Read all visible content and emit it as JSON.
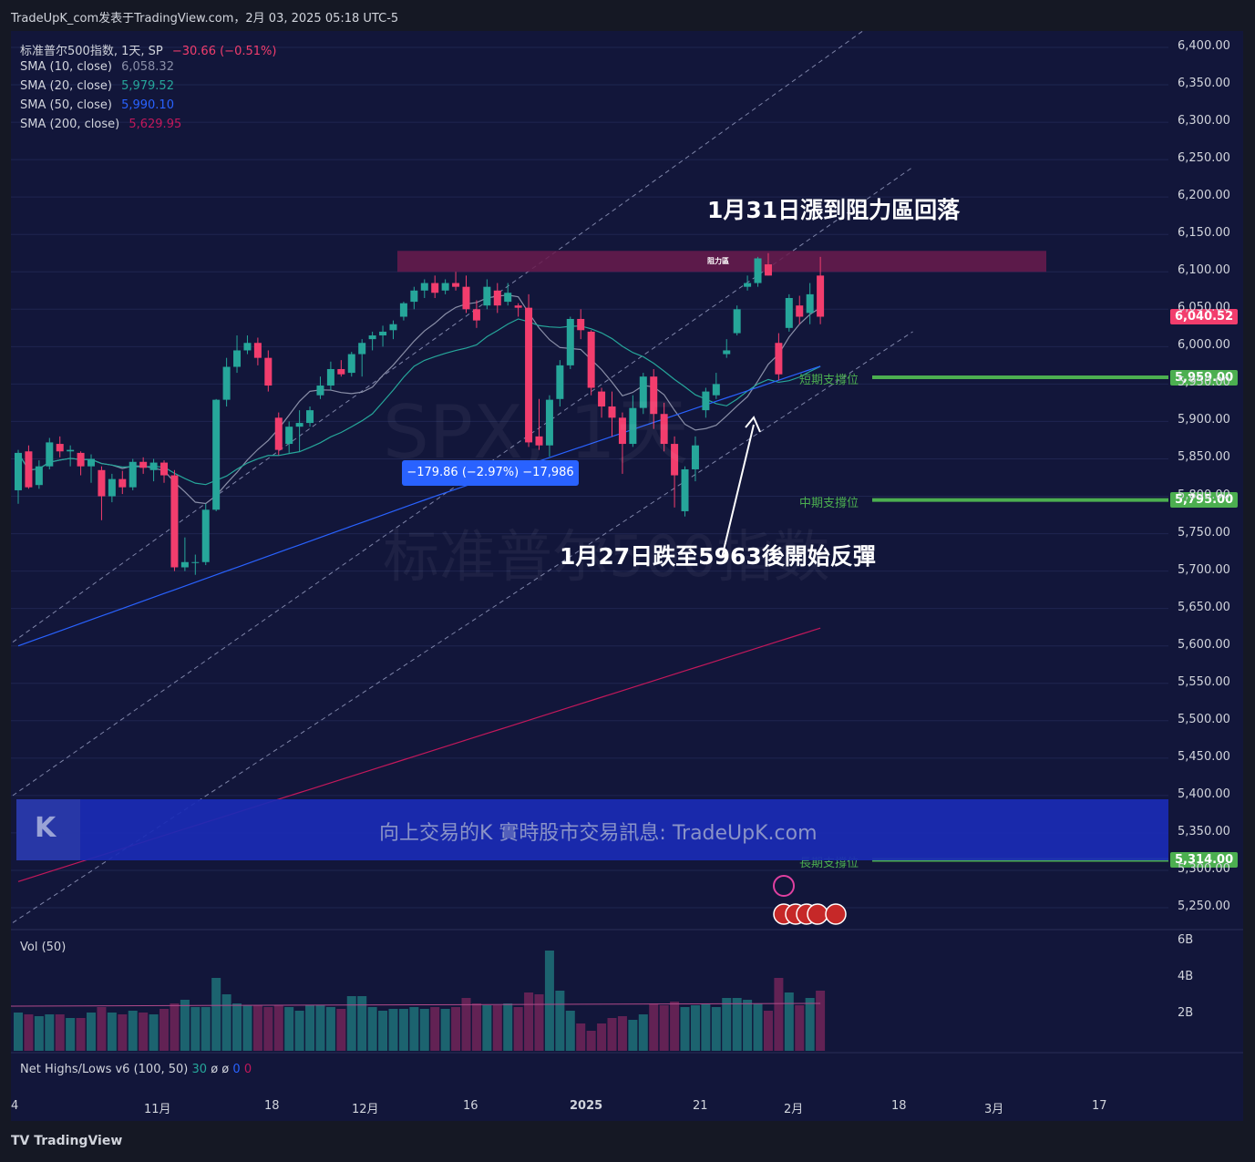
{
  "header": {
    "publish_line": "TradeUpK_com发表于TradingView.com，2月 03, 2025 05:18 UTC-5"
  },
  "legend": {
    "symbol": "标准普尔500指数, 1天, SP",
    "change": "−30.66 (−0.51%)",
    "sma10_label": "SMA (10, close)",
    "sma10_value": "6,058.32",
    "sma20_label": "SMA (20, close)",
    "sma20_value": "5,979.52",
    "sma50_label": "SMA (50, close)",
    "sma50_value": "5,990.10",
    "sma200_label": "SMA (200, close)",
    "sma200_value": "5,629.95"
  },
  "colors": {
    "up": "#26a69a",
    "down": "#f23d6d",
    "sma10": "#8a8fa8",
    "sma20": "#26a69a",
    "sma50": "#2962ff",
    "sma200": "#c2185b",
    "support": "#4caf50",
    "resistance": "#6a1b4d",
    "background": "#12163a"
  },
  "annotations": {
    "top_note": "1月31日漲到阻力區回落",
    "bottom_note": "1月27日跌至5963後開始反彈",
    "resistance_label": "阻力區",
    "short_support": "短期支撐位",
    "mid_support": "中期支撐位",
    "long_support": "長期支撐位",
    "measure": "−179.86 (−2.97%) −17,986"
  },
  "price_tags": {
    "last": "6,040.52",
    "short": "5,959.00",
    "mid": "5,795.00",
    "long": "5,314.00"
  },
  "watermark": {
    "symbol": "SPX, 1天",
    "name": "标准普尔500指数"
  },
  "banner": {
    "logo": "K",
    "text": "向上交易的K 實時股市交易訊息: TradeUpK.com"
  },
  "volume_panel": {
    "label": "Vol (50)",
    "ticks": [
      "6B",
      "4B",
      "2B"
    ]
  },
  "net_highs_lows": {
    "label": "Net Highs/Lows v6 (100, 50)",
    "v1": "30",
    "v2": "ø",
    "v3": "ø",
    "v4": "0",
    "v5": "0"
  },
  "footer": {
    "brand": "TradingView"
  },
  "chart_data": {
    "type": "candlestick",
    "symbol": "SPX",
    "y_axis_ticks": [
      "6,400.00",
      "6,350.00",
      "6,300.00",
      "6,250.00",
      "6,200.00",
      "6,150.00",
      "6,100.00",
      "6,050.00",
      "6,000.00",
      "5,950.00",
      "5,900.00",
      "5,850.00",
      "5,800.00",
      "5,750.00",
      "5,700.00",
      "5,650.00",
      "5,600.00",
      "5,550.00",
      "5,500.00",
      "5,450.00",
      "5,400.00",
      "5,350.00",
      "5,300.00",
      "5,250.00"
    ],
    "ylim": [
      5225,
      6425
    ],
    "x_axis_labels": [
      {
        "label": "4",
        "i": -1
      },
      {
        "label": "11月",
        "i": 5
      },
      {
        "label": "18",
        "i": 9
      },
      {
        "label": "12月",
        "i": 13
      },
      {
        "label": "16",
        "i": 17
      },
      {
        "label": "2025",
        "i": 21.5
      },
      {
        "label": "21",
        "i": 26
      },
      {
        "label": "2月",
        "i": 30
      },
      {
        "label": "18",
        "i": 34
      },
      {
        "label": "3月",
        "i": 38
      },
      {
        "label": "17",
        "i": 42
      }
    ],
    "candles": [
      {
        "o": 5808,
        "h": 5862,
        "l": 5790,
        "c": 5858,
        "v": 2.1
      },
      {
        "o": 5860,
        "h": 5868,
        "l": 5810,
        "c": 5812,
        "v": 2.0
      },
      {
        "o": 5815,
        "h": 5848,
        "l": 5810,
        "c": 5840,
        "v": 1.9
      },
      {
        "o": 5840,
        "h": 5878,
        "l": 5836,
        "c": 5872,
        "v": 2.0
      },
      {
        "o": 5870,
        "h": 5880,
        "l": 5852,
        "c": 5860,
        "v": 2.0
      },
      {
        "o": 5860,
        "h": 5868,
        "l": 5840,
        "c": 5862,
        "v": 1.8
      },
      {
        "o": 5858,
        "h": 5860,
        "l": 5828,
        "c": 5840,
        "v": 1.8
      },
      {
        "o": 5840,
        "h": 5856,
        "l": 5818,
        "c": 5850,
        "v": 2.1
      },
      {
        "o": 5835,
        "h": 5840,
        "l": 5768,
        "c": 5800,
        "v": 2.4
      },
      {
        "o": 5800,
        "h": 5830,
        "l": 5792,
        "c": 5823,
        "v": 2.1
      },
      {
        "o": 5823,
        "h": 5834,
        "l": 5803,
        "c": 5812,
        "v": 2.0
      },
      {
        "o": 5812,
        "h": 5850,
        "l": 5808,
        "c": 5846,
        "v": 2.2
      },
      {
        "o": 5846,
        "h": 5852,
        "l": 5830,
        "c": 5838,
        "v": 2.1
      },
      {
        "o": 5835,
        "h": 5850,
        "l": 5820,
        "c": 5845,
        "v": 2.0
      },
      {
        "o": 5845,
        "h": 5848,
        "l": 5818,
        "c": 5828,
        "v": 2.3
      },
      {
        "o": 5828,
        "h": 5835,
        "l": 5700,
        "c": 5705,
        "v": 2.6
      },
      {
        "o": 5705,
        "h": 5745,
        "l": 5700,
        "c": 5712,
        "v": 2.8
      },
      {
        "o": 5712,
        "h": 5722,
        "l": 5695,
        "c": 5712,
        "v": 2.4
      },
      {
        "o": 5712,
        "h": 5790,
        "l": 5708,
        "c": 5782,
        "v": 2.4
      },
      {
        "o": 5782,
        "h": 5930,
        "l": 5780,
        "c": 5929,
        "v": 4.0
      },
      {
        "o": 5929,
        "h": 5985,
        "l": 5920,
        "c": 5973,
        "v": 3.1
      },
      {
        "o": 5973,
        "h": 6015,
        "l": 5965,
        "c": 5995,
        "v": 2.6
      },
      {
        "o": 5995,
        "h": 6015,
        "l": 5990,
        "c": 6005,
        "v": 2.5
      },
      {
        "o": 6005,
        "h": 6012,
        "l": 5975,
        "c": 5985,
        "v": 2.5
      },
      {
        "o": 5985,
        "h": 5995,
        "l": 5940,
        "c": 5948,
        "v": 2.4
      },
      {
        "o": 5905,
        "h": 5912,
        "l": 5855,
        "c": 5862,
        "v": 2.5
      },
      {
        "o": 5870,
        "h": 5900,
        "l": 5858,
        "c": 5893,
        "v": 2.4
      },
      {
        "o": 5893,
        "h": 5915,
        "l": 5860,
        "c": 5898,
        "v": 2.2
      },
      {
        "o": 5898,
        "h": 5920,
        "l": 5893,
        "c": 5915,
        "v": 2.5
      },
      {
        "o": 5935,
        "h": 5960,
        "l": 5930,
        "c": 5948,
        "v": 2.5
      },
      {
        "o": 5948,
        "h": 5980,
        "l": 5942,
        "c": 5970,
        "v": 2.4
      },
      {
        "o": 5970,
        "h": 5982,
        "l": 5960,
        "c": 5963,
        "v": 2.3
      },
      {
        "o": 5965,
        "h": 5993,
        "l": 5960,
        "c": 5990,
        "v": 3.0
      },
      {
        "o": 5990,
        "h": 6010,
        "l": 5960,
        "c": 6005,
        "v": 3.0
      },
      {
        "o": 6010,
        "h": 6020,
        "l": 5995,
        "c": 6015,
        "v": 2.4
      },
      {
        "o": 6015,
        "h": 6028,
        "l": 6000,
        "c": 6020,
        "v": 2.2
      },
      {
        "o": 6022,
        "h": 6035,
        "l": 6010,
        "c": 6030,
        "v": 2.3
      },
      {
        "o": 6040,
        "h": 6060,
        "l": 6035,
        "c": 6058,
        "v": 2.3
      },
      {
        "o": 6060,
        "h": 6080,
        "l": 6050,
        "c": 6075,
        "v": 2.4
      },
      {
        "o": 6075,
        "h": 6090,
        "l": 6065,
        "c": 6085,
        "v": 2.3
      },
      {
        "o": 6085,
        "h": 6095,
        "l": 6065,
        "c": 6072,
        "v": 2.4
      },
      {
        "o": 6075,
        "h": 6090,
        "l": 6070,
        "c": 6085,
        "v": 2.3
      },
      {
        "o": 6085,
        "h": 6100,
        "l": 6075,
        "c": 6080,
        "v": 2.4
      },
      {
        "o": 6080,
        "h": 6095,
        "l": 6045,
        "c": 6050,
        "v": 2.9
      },
      {
        "o": 6050,
        "h": 6062,
        "l": 6025,
        "c": 6035,
        "v": 2.6
      },
      {
        "o": 6055,
        "h": 6090,
        "l": 6050,
        "c": 6080,
        "v": 2.5
      },
      {
        "o": 6075,
        "h": 6085,
        "l": 6045,
        "c": 6055,
        "v": 2.5
      },
      {
        "o": 6060,
        "h": 6085,
        "l": 6055,
        "c": 6072,
        "v": 2.6
      },
      {
        "o": 6055,
        "h": 6058,
        "l": 6040,
        "c": 6052,
        "v": 2.4
      },
      {
        "o": 6052,
        "h": 6070,
        "l": 5866,
        "c": 5872,
        "v": 3.2
      },
      {
        "o": 5880,
        "h": 5930,
        "l": 5862,
        "c": 5868,
        "v": 3.1
      },
      {
        "o": 5868,
        "h": 5935,
        "l": 5853,
        "c": 5929,
        "v": 5.5
      },
      {
        "o": 5930,
        "h": 5982,
        "l": 5920,
        "c": 5975,
        "v": 3.3
      },
      {
        "o": 5975,
        "h": 6040,
        "l": 5970,
        "c": 6037,
        "v": 2.2
      },
      {
        "o": 6037,
        "h": 6050,
        "l": 6010,
        "c": 6022,
        "v": 1.5
      },
      {
        "o": 6020,
        "h": 6022,
        "l": 5935,
        "c": 5945,
        "v": 1.1
      },
      {
        "o": 5940,
        "h": 5945,
        "l": 5905,
        "c": 5920,
        "v": 1.5
      },
      {
        "o": 5920,
        "h": 5940,
        "l": 5880,
        "c": 5905,
        "v": 1.8
      },
      {
        "o": 5905,
        "h": 5912,
        "l": 5830,
        "c": 5870,
        "v": 1.9
      },
      {
        "o": 5870,
        "h": 5935,
        "l": 5866,
        "c": 5918,
        "v": 1.7
      },
      {
        "o": 5918,
        "h": 5965,
        "l": 5910,
        "c": 5960,
        "v": 2.0
      },
      {
        "o": 5960,
        "h": 5970,
        "l": 5890,
        "c": 5910,
        "v": 2.6
      },
      {
        "o": 5910,
        "h": 5925,
        "l": 5860,
        "c": 5870,
        "v": 2.5
      },
      {
        "o": 5870,
        "h": 5880,
        "l": 5785,
        "c": 5828,
        "v": 2.7
      },
      {
        "o": 5780,
        "h": 5840,
        "l": 5773,
        "c": 5836,
        "v": 2.4
      },
      {
        "o": 5836,
        "h": 5880,
        "l": 5820,
        "c": 5868,
        "v": 2.5
      },
      {
        "o": 5915,
        "h": 5945,
        "l": 5905,
        "c": 5940,
        "v": 2.6
      },
      {
        "o": 5935,
        "h": 5965,
        "l": 5930,
        "c": 5950,
        "v": 2.4
      },
      {
        "o": 5990,
        "h": 6010,
        "l": 5985,
        "c": 5995,
        "v": 2.9
      },
      {
        "o": 6018,
        "h": 6055,
        "l": 6015,
        "c": 6050,
        "v": 2.9
      },
      {
        "o": 6080,
        "h": 6095,
        "l": 6075,
        "c": 6085,
        "v": 2.8
      },
      {
        "o": 6085,
        "h": 6120,
        "l": 6080,
        "c": 6118,
        "v": 2.6
      },
      {
        "o": 6110,
        "h": 6125,
        "l": 6095,
        "c": 6095,
        "v": 2.2
      },
      {
        "o": 6005,
        "h": 6018,
        "l": 5955,
        "c": 5963,
        "v": 4.0
      },
      {
        "o": 6025,
        "h": 6070,
        "l": 6020,
        "c": 6065,
        "v": 3.2
      },
      {
        "o": 6055,
        "h": 6068,
        "l": 6030,
        "c": 6040,
        "v": 2.5
      },
      {
        "o": 6045,
        "h": 6085,
        "l": 6030,
        "c": 6070,
        "v": 2.9
      },
      {
        "o": 6095,
        "h": 6120,
        "l": 6030,
        "c": 6040,
        "v": 3.3
      }
    ],
    "sma10_note": "6,058.32",
    "sma20_note": "5,979.52",
    "sma50_note": "5,990.10",
    "sma200_note": "5,629.95",
    "resistance_zone": [
      6100,
      6128
    ],
    "support_levels": [
      5959,
      5795,
      5314
    ],
    "last_price": 6040.52
  }
}
